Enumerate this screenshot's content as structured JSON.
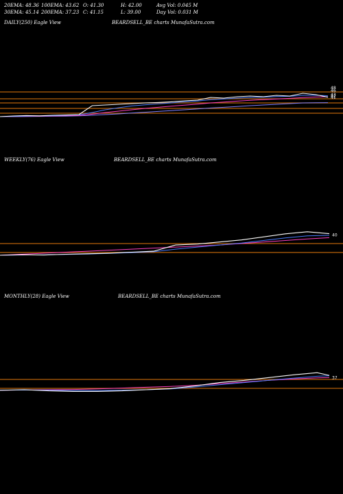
{
  "header": {
    "ema20": "20EMA: 48.36",
    "ema100": "100EMA: 43.62",
    "open": "O: 41.30",
    "high": "H: 42.00",
    "avg_vol": "Avg Vol: 0.045 M",
    "ema30": "30EMA: 45.14",
    "ema200": "200EMA: 37.23",
    "close": "C: 41.15",
    "low": "L: 39.00",
    "day_vol": "Day Vol: 0.031 M"
  },
  "panels": [
    {
      "title": "DAILY(250) Eagle   View",
      "watermark": "BEARDSELL_BE charts MunafaSutra.com"
    },
    {
      "title": "WEEKLY(76) Eagle   View",
      "watermark": "BEARDSELL_BE charts MunafaSutra.com"
    },
    {
      "title": "MONTHLY(28) Eagle   View",
      "watermark": "BEARDSELL_BE charts MunafaSutra.com"
    }
  ],
  "colors": {
    "price": "#ffffff",
    "ema_short": "#4a7cff",
    "ema_mid": "#ff40c0",
    "ema_long": "#8080ff",
    "level": "#b8620a"
  },
  "chart_data": [
    {
      "type": "line",
      "title": "DAILY(250) Eagle   View",
      "ylim": [
        26,
        52
      ],
      "x": [
        0,
        10,
        20,
        30,
        40,
        50,
        60,
        70,
        80,
        90,
        100,
        110,
        120,
        130,
        140,
        150,
        160,
        170,
        180,
        190,
        200,
        210,
        220,
        230,
        240,
        249
      ],
      "series": [
        {
          "values": [
            27,
            27.5,
            27.8,
            27.6,
            28,
            28.2,
            28.5,
            35,
            35.5,
            36,
            36.5,
            37,
            37.3,
            37.8,
            38.5,
            39,
            41,
            40.5,
            41.5,
            42,
            41.5,
            42.5,
            42,
            44,
            43,
            41.15
          ]
        },
        {
          "values": [
            27,
            27.2,
            27.4,
            27.5,
            27.7,
            28,
            28.3,
            30,
            32,
            33.5,
            34.8,
            35.6,
            36.3,
            37,
            37.8,
            38.4,
            39.4,
            39.9,
            40.5,
            41,
            41.2,
            41.6,
            41.8,
            42.5,
            42.6,
            42.2
          ]
        },
        {
          "values": [
            27,
            27.1,
            27.2,
            27.3,
            27.5,
            27.7,
            27.9,
            28.8,
            30,
            31,
            32,
            33,
            33.8,
            34.6,
            35.4,
            36.1,
            37,
            37.6,
            38.3,
            38.9,
            39.4,
            39.9,
            40.3,
            40.9,
            41.3,
            41.5
          ]
        },
        {
          "values": [
            27,
            27,
            27.1,
            27.2,
            27.3,
            27.4,
            27.6,
            28,
            28.5,
            29,
            29.6,
            30.2,
            30.8,
            31.4,
            32,
            32.6,
            33.3,
            33.8,
            34.4,
            35,
            35.5,
            36,
            36.5,
            37,
            37.1,
            37.2
          ]
        }
      ],
      "y_ticks": [
        48,
        46,
        43,
        42,
        41
      ]
    },
    {
      "type": "line",
      "title": "WEEKLY(76) Eagle   View",
      "ylim": [
        20,
        55
      ],
      "x": [
        0,
        5,
        10,
        15,
        20,
        25,
        30,
        35,
        40,
        45,
        50,
        55,
        60,
        65,
        70,
        75
      ],
      "series": [
        {
          "values": [
            20,
            20.5,
            20.2,
            21,
            21.5,
            22,
            23,
            24,
            30,
            31,
            33,
            35,
            38,
            41,
            43,
            41.15
          ]
        },
        {
          "values": [
            20,
            20.3,
            20.4,
            20.8,
            21.2,
            21.8,
            22.6,
            23.4,
            26,
            28,
            30,
            32,
            34.5,
            37,
            39,
            39.5
          ]
        },
        {
          "values": [
            20,
            21,
            22,
            23,
            24,
            25,
            26,
            27,
            28,
            29,
            30,
            31.5,
            33,
            34.5,
            36,
            37.2
          ]
        }
      ],
      "y_ticks": [
        40
      ]
    },
    {
      "type": "line",
      "title": "MONTHLY(28) Eagle   View",
      "ylim": [
        10,
        75
      ],
      "x": [
        0,
        2,
        4,
        6,
        8,
        10,
        12,
        14,
        16,
        18,
        20,
        22,
        24,
        26,
        27
      ],
      "series": [
        {
          "values": [
            14,
            15,
            13,
            12,
            12,
            13,
            15,
            17,
            22,
            28,
            32,
            37,
            42,
            46,
            41.15
          ]
        },
        {
          "values": [
            14,
            14.5,
            14,
            13.5,
            13.5,
            14,
            15,
            16.5,
            20,
            24,
            28,
            32,
            36,
            39.5,
            40.5
          ]
        },
        {
          "values": [
            14,
            14.5,
            15,
            15.5,
            16.5,
            18,
            19.5,
            21,
            23,
            26,
            29,
            32,
            34.5,
            36.5,
            37.2
          ]
        }
      ],
      "y_ticks": [
        37
      ]
    }
  ]
}
